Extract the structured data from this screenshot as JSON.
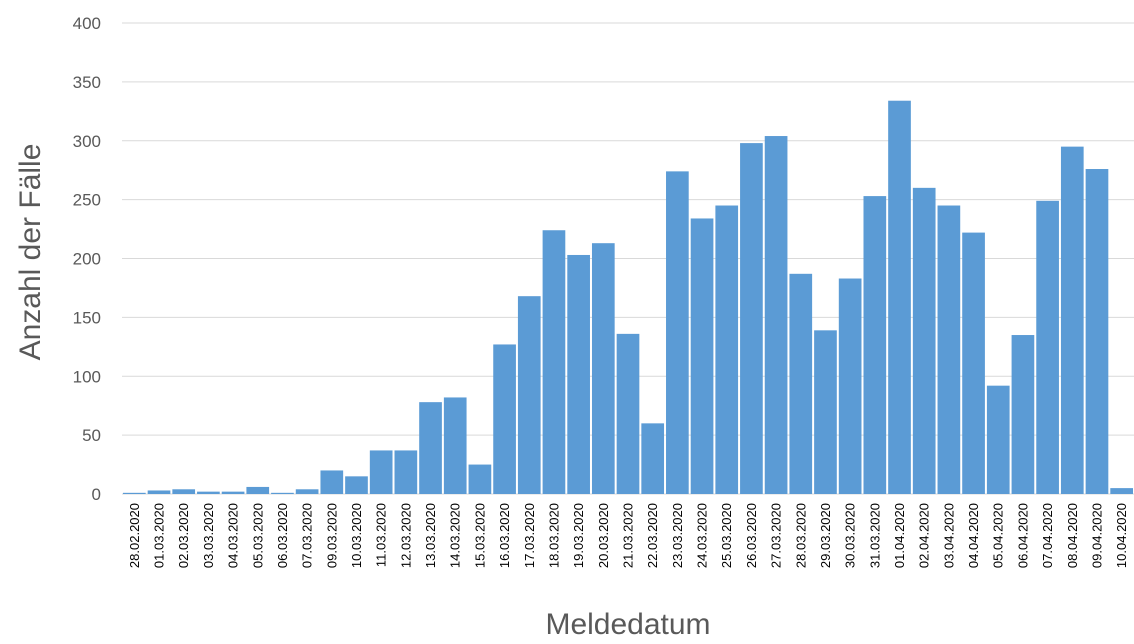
{
  "chart_data": {
    "type": "bar",
    "title": "",
    "xlabel": "Meldedatum",
    "ylabel": "Anzahl der Fälle",
    "ylim": [
      0,
      400
    ],
    "yticks": [
      0,
      50,
      100,
      150,
      200,
      250,
      300,
      350,
      400
    ],
    "grid": true,
    "legend": "none",
    "bar_color": "#5b9bd5",
    "categories": [
      "28.02.2020",
      "01.03.2020",
      "02.03.2020",
      "03.03.2020",
      "04.03.2020",
      "05.03.2020",
      "06.03.2020",
      "07.03.2020",
      "09.03.2020",
      "10.03.2020",
      "11.03.2020",
      "12.03.2020",
      "13.03.2020",
      "14.03.2020",
      "15.03.2020",
      "16.03.2020",
      "17.03.2020",
      "18.03.2020",
      "19.03.2020",
      "20.03.2020",
      "21.03.2020",
      "22.03.2020",
      "23.03.2020",
      "24.03.2020",
      "25.03.2020",
      "26.03.2020",
      "27.03.2020",
      "28.03.2020",
      "29.03.2020",
      "30.03.2020",
      "31.03.2020",
      "01.04.2020",
      "02.04.2020",
      "03.04.2020",
      "04.04.2020",
      "05.04.2020",
      "06.04.2020",
      "07.04.2020",
      "08.04.2020",
      "09.04.2020",
      "10.04.2020"
    ],
    "values": [
      1,
      3,
      4,
      2,
      2,
      6,
      1,
      4,
      20,
      15,
      37,
      37,
      78,
      82,
      25,
      127,
      168,
      224,
      203,
      213,
      136,
      60,
      274,
      234,
      245,
      298,
      304,
      187,
      139,
      183,
      253,
      334,
      260,
      245,
      222,
      92,
      135,
      249,
      295,
      276,
      5
    ]
  }
}
